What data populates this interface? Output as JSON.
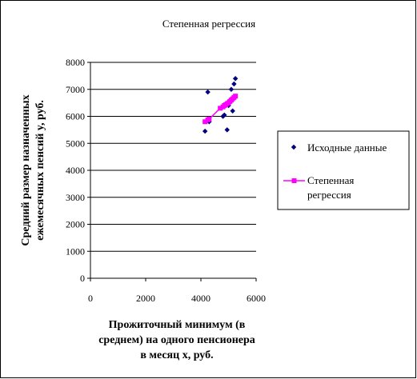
{
  "chart_data": {
    "type": "scatter",
    "title": "Степенная регрессия",
    "xlabel": [
      "Прожиточный минимум (в",
      "среднем) на одного пенсионера",
      "в месяц x, руб."
    ],
    "ylabel": [
      "Средний размер назначенных",
      "ежемесячных пенсий y, руб."
    ],
    "xlim": [
      0,
      6000
    ],
    "ylim": [
      0,
      8000
    ],
    "xticks": [
      0,
      2000,
      4000,
      6000
    ],
    "yticks": [
      0,
      1000,
      2000,
      3000,
      4000,
      5000,
      6000,
      7000,
      8000
    ],
    "grid": "horizontal",
    "legend_position": "right",
    "series": [
      {
        "name": "Исходные данные",
        "marker": "diamond",
        "color": "#000080",
        "points": [
          [
            4150,
            5450
          ],
          [
            4250,
            6900
          ],
          [
            4300,
            5800
          ],
          [
            4800,
            6000
          ],
          [
            4850,
            6050
          ],
          [
            4900,
            6450
          ],
          [
            4950,
            5500
          ],
          [
            5000,
            6400
          ],
          [
            5050,
            6600
          ],
          [
            5100,
            7000
          ],
          [
            5150,
            6200
          ],
          [
            5200,
            7200
          ],
          [
            5250,
            7400
          ]
        ]
      },
      {
        "name": "Степенная регрессия",
        "marker": "square",
        "color": "#ff00ff",
        "points": [
          [
            4150,
            5800
          ],
          [
            4250,
            5870
          ],
          [
            4300,
            5900
          ],
          [
            4700,
            6300
          ],
          [
            4800,
            6350
          ],
          [
            4850,
            6400
          ],
          [
            4900,
            6430
          ],
          [
            4950,
            6470
          ],
          [
            5000,
            6500
          ],
          [
            5050,
            6550
          ],
          [
            5100,
            6600
          ],
          [
            5150,
            6650
          ],
          [
            5200,
            6700
          ],
          [
            5250,
            6750
          ]
        ]
      }
    ]
  }
}
